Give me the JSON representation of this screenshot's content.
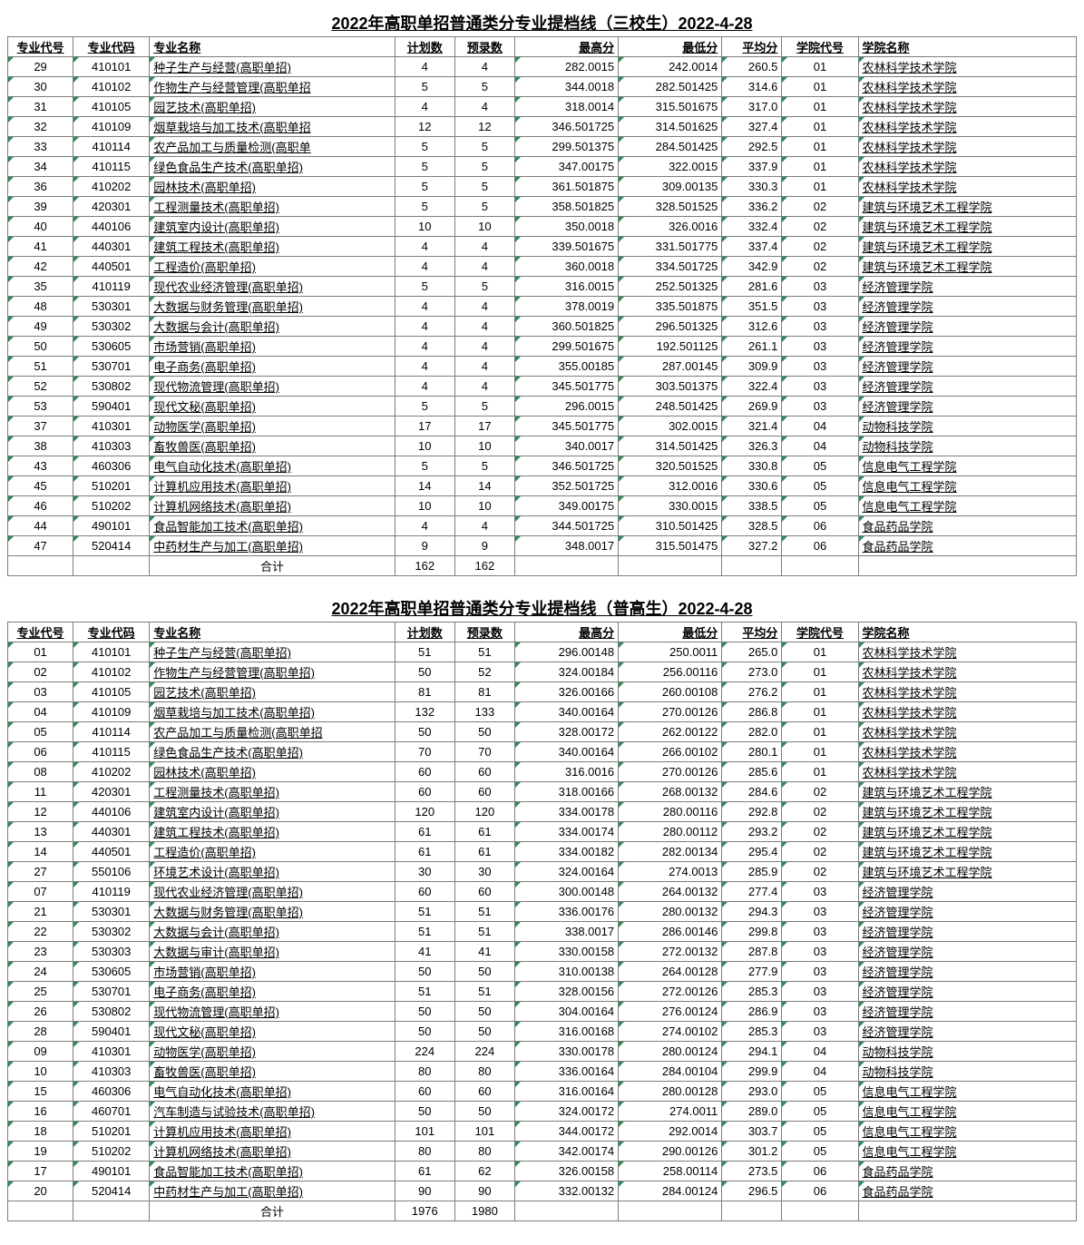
{
  "tables": [
    {
      "title": "2022年高职单招普通类分专业提档线（三校生）2022-4-28",
      "columns": [
        "专业代号",
        "专业代码",
        "专业名称",
        "计划数",
        "预录数",
        "最高分",
        "最低分",
        "平均分",
        "学院代号",
        "学院名称"
      ],
      "rows": [
        [
          "29",
          "410101",
          "种子生产与经营(高职单招)",
          "4",
          "4",
          "282.0015",
          "242.0014",
          "260.5",
          "01",
          "农林科学技术学院"
        ],
        [
          "30",
          "410102",
          "作物生产与经营管理(高职单招",
          "5",
          "5",
          "344.0018",
          "282.501425",
          "314.6",
          "01",
          "农林科学技术学院"
        ],
        [
          "31",
          "410105",
          "园艺技术(高职单招)",
          "4",
          "4",
          "318.0014",
          "315.501675",
          "317.0",
          "01",
          "农林科学技术学院"
        ],
        [
          "32",
          "410109",
          "烟草栽培与加工技术(高职单招",
          "12",
          "12",
          "346.501725",
          "314.501625",
          "327.4",
          "01",
          "农林科学技术学院"
        ],
        [
          "33",
          "410114",
          "农产品加工与质量检测(高职单",
          "5",
          "5",
          "299.501375",
          "284.501425",
          "292.5",
          "01",
          "农林科学技术学院"
        ],
        [
          "34",
          "410115",
          "绿色食品生产技术(高职单招)",
          "5",
          "5",
          "347.00175",
          "322.0015",
          "337.9",
          "01",
          "农林科学技术学院"
        ],
        [
          "36",
          "410202",
          "园林技术(高职单招)",
          "5",
          "5",
          "361.501875",
          "309.00135",
          "330.3",
          "01",
          "农林科学技术学院"
        ],
        [
          "39",
          "420301",
          "工程测量技术(高职单招)",
          "5",
          "5",
          "358.501825",
          "328.501525",
          "336.2",
          "02",
          "建筑与环境艺术工程学院"
        ],
        [
          "40",
          "440106",
          "建筑室内设计(高职单招)",
          "10",
          "10",
          "350.0018",
          "326.0016",
          "332.4",
          "02",
          "建筑与环境艺术工程学院"
        ],
        [
          "41",
          "440301",
          "建筑工程技术(高职单招)",
          "4",
          "4",
          "339.501675",
          "331.501775",
          "337.4",
          "02",
          "建筑与环境艺术工程学院"
        ],
        [
          "42",
          "440501",
          "工程造价(高职单招)",
          "4",
          "4",
          "360.0018",
          "334.501725",
          "342.9",
          "02",
          "建筑与环境艺术工程学院"
        ],
        [
          "35",
          "410119",
          "现代农业经济管理(高职单招)",
          "5",
          "5",
          "316.0015",
          "252.501325",
          "281.6",
          "03",
          "经济管理学院"
        ],
        [
          "48",
          "530301",
          "大数据与财务管理(高职单招)",
          "4",
          "4",
          "378.0019",
          "335.501875",
          "351.5",
          "03",
          "经济管理学院"
        ],
        [
          "49",
          "530302",
          "大数据与会计(高职单招)",
          "4",
          "4",
          "360.501825",
          "296.501325",
          "312.6",
          "03",
          "经济管理学院"
        ],
        [
          "50",
          "530605",
          "市场营销(高职单招)",
          "4",
          "4",
          "299.501675",
          "192.501125",
          "261.1",
          "03",
          "经济管理学院"
        ],
        [
          "51",
          "530701",
          "电子商务(高职单招)",
          "4",
          "4",
          "355.00185",
          "287.00145",
          "309.9",
          "03",
          "经济管理学院"
        ],
        [
          "52",
          "530802",
          "现代物流管理(高职单招)",
          "4",
          "4",
          "345.501775",
          "303.501375",
          "322.4",
          "03",
          "经济管理学院"
        ],
        [
          "53",
          "590401",
          "现代文秘(高职单招)",
          "5",
          "5",
          "296.0015",
          "248.501425",
          "269.9",
          "03",
          "经济管理学院"
        ],
        [
          "37",
          "410301",
          "动物医学(高职单招)",
          "17",
          "17",
          "345.501775",
          "302.0015",
          "321.4",
          "04",
          "动物科技学院"
        ],
        [
          "38",
          "410303",
          "畜牧兽医(高职单招)",
          "10",
          "10",
          "340.0017",
          "314.501425",
          "326.3",
          "04",
          "动物科技学院"
        ],
        [
          "43",
          "460306",
          "电气自动化技术(高职单招)",
          "5",
          "5",
          "346.501725",
          "320.501525",
          "330.8",
          "05",
          "信息电气工程学院"
        ],
        [
          "45",
          "510201",
          "计算机应用技术(高职单招)",
          "14",
          "14",
          "352.501725",
          "312.0016",
          "330.6",
          "05",
          "信息电气工程学院"
        ],
        [
          "46",
          "510202",
          "计算机网络技术(高职单招)",
          "10",
          "10",
          "349.00175",
          "330.0015",
          "338.5",
          "05",
          "信息电气工程学院"
        ],
        [
          "44",
          "490101",
          "食品智能加工技术(高职单招)",
          "4",
          "4",
          "344.501725",
          "310.501425",
          "328.5",
          "06",
          "食品药品学院"
        ],
        [
          "47",
          "520414",
          "中药材生产与加工(高职单招)",
          "9",
          "9",
          "348.0017",
          "315.501475",
          "327.2",
          "06",
          "食品药品学院"
        ]
      ],
      "sum_label": "合计",
      "sum_plan": "162",
      "sum_prerec": "162"
    },
    {
      "title": "2022年高职单招普通类分专业提档线（普高生）2022-4-28",
      "columns": [
        "专业代号",
        "专业代码",
        "专业名称",
        "计划数",
        "预录数",
        "最高分",
        "最低分",
        "平均分",
        "学院代号",
        "学院名称"
      ],
      "rows": [
        [
          "01",
          "410101",
          "种子生产与经营(高职单招)",
          "51",
          "51",
          "296.00148",
          "250.0011",
          "265.0",
          "01",
          "农林科学技术学院"
        ],
        [
          "02",
          "410102",
          "作物生产与经营管理(高职单招)",
          "50",
          "52",
          "324.00184",
          "256.00116",
          "273.0",
          "01",
          "农林科学技术学院"
        ],
        [
          "03",
          "410105",
          "园艺技术(高职单招)",
          "81",
          "81",
          "326.00166",
          "260.00108",
          "276.2",
          "01",
          "农林科学技术学院"
        ],
        [
          "04",
          "410109",
          "烟草栽培与加工技术(高职单招)",
          "132",
          "133",
          "340.00164",
          "270.00126",
          "286.8",
          "01",
          "农林科学技术学院"
        ],
        [
          "05",
          "410114",
          "农产品加工与质量检测(高职单招",
          "50",
          "50",
          "328.00172",
          "262.00122",
          "282.0",
          "01",
          "农林科学技术学院"
        ],
        [
          "06",
          "410115",
          "绿色食品生产技术(高职单招)",
          "70",
          "70",
          "340.00164",
          "266.00102",
          "280.1",
          "01",
          "农林科学技术学院"
        ],
        [
          "08",
          "410202",
          "园林技术(高职单招)",
          "60",
          "60",
          "316.0016",
          "270.00126",
          "285.6",
          "01",
          "农林科学技术学院"
        ],
        [
          "11",
          "420301",
          "工程测量技术(高职单招)",
          "60",
          "60",
          "318.00166",
          "268.00132",
          "284.6",
          "02",
          "建筑与环境艺术工程学院"
        ],
        [
          "12",
          "440106",
          "建筑室内设计(高职单招)",
          "120",
          "120",
          "334.00178",
          "280.00116",
          "292.8",
          "02",
          "建筑与环境艺术工程学院"
        ],
        [
          "13",
          "440301",
          "建筑工程技术(高职单招)",
          "61",
          "61",
          "334.00174",
          "280.00112",
          "293.2",
          "02",
          "建筑与环境艺术工程学院"
        ],
        [
          "14",
          "440501",
          "工程造价(高职单招)",
          "61",
          "61",
          "334.00182",
          "282.00134",
          "295.4",
          "02",
          "建筑与环境艺术工程学院"
        ],
        [
          "27",
          "550106",
          "环境艺术设计(高职单招)",
          "30",
          "30",
          "324.00164",
          "274.0013",
          "285.9",
          "02",
          "建筑与环境艺术工程学院"
        ],
        [
          "07",
          "410119",
          "现代农业经济管理(高职单招)",
          "60",
          "60",
          "300.00148",
          "264.00132",
          "277.4",
          "03",
          "经济管理学院"
        ],
        [
          "21",
          "530301",
          "大数据与财务管理(高职单招)",
          "51",
          "51",
          "336.00176",
          "280.00132",
          "294.3",
          "03",
          "经济管理学院"
        ],
        [
          "22",
          "530302",
          "大数据与会计(高职单招)",
          "51",
          "51",
          "338.0017",
          "286.00146",
          "299.8",
          "03",
          "经济管理学院"
        ],
        [
          "23",
          "530303",
          "大数据与审计(高职单招)",
          "41",
          "41",
          "330.00158",
          "272.00132",
          "287.8",
          "03",
          "经济管理学院"
        ],
        [
          "24",
          "530605",
          "市场营销(高职单招)",
          "50",
          "50",
          "310.00138",
          "264.00128",
          "277.9",
          "03",
          "经济管理学院"
        ],
        [
          "25",
          "530701",
          "电子商务(高职单招)",
          "51",
          "51",
          "328.00156",
          "272.00126",
          "285.3",
          "03",
          "经济管理学院"
        ],
        [
          "26",
          "530802",
          "现代物流管理(高职单招)",
          "50",
          "50",
          "304.00164",
          "276.00124",
          "286.9",
          "03",
          "经济管理学院"
        ],
        [
          "28",
          "590401",
          "现代文秘(高职单招)",
          "50",
          "50",
          "316.00168",
          "274.00102",
          "285.3",
          "03",
          "经济管理学院"
        ],
        [
          "09",
          "410301",
          "动物医学(高职单招)",
          "224",
          "224",
          "330.00178",
          "280.00124",
          "294.1",
          "04",
          "动物科技学院"
        ],
        [
          "10",
          "410303",
          "畜牧兽医(高职单招)",
          "80",
          "80",
          "336.00164",
          "284.00104",
          "299.9",
          "04",
          "动物科技学院"
        ],
        [
          "15",
          "460306",
          "电气自动化技术(高职单招)",
          "60",
          "60",
          "316.00164",
          "280.00128",
          "293.0",
          "05",
          "信息电气工程学院"
        ],
        [
          "16",
          "460701",
          "汽车制造与试验技术(高职单招)",
          "50",
          "50",
          "324.00172",
          "274.0011",
          "289.0",
          "05",
          "信息电气工程学院"
        ],
        [
          "18",
          "510201",
          "计算机应用技术(高职单招)",
          "101",
          "101",
          "344.00172",
          "292.0014",
          "303.7",
          "05",
          "信息电气工程学院"
        ],
        [
          "19",
          "510202",
          "计算机网络技术(高职单招)",
          "80",
          "80",
          "342.00174",
          "290.00126",
          "301.2",
          "05",
          "信息电气工程学院"
        ],
        [
          "17",
          "490101",
          "食品智能加工技术(高职单招)",
          "61",
          "62",
          "326.00158",
          "258.00114",
          "273.5",
          "06",
          "食品药品学院"
        ],
        [
          "20",
          "520414",
          "中药材生产与加工(高职单招)",
          "90",
          "90",
          "332.00132",
          "284.00124",
          "296.5",
          "06",
          "食品药品学院"
        ]
      ],
      "sum_label": "合计",
      "sum_plan": "1976",
      "sum_prerec": "1980"
    }
  ],
  "col_classes": [
    "c-major-id",
    "c-major-code",
    "c-major-name",
    "c-plan",
    "c-prerec",
    "c-max",
    "c-min",
    "c-avg",
    "c-col-code",
    "c-col-name"
  ],
  "tick_cols": [
    0,
    1,
    2,
    5,
    6,
    7,
    8,
    9
  ],
  "underline_cols": [
    2,
    9
  ]
}
